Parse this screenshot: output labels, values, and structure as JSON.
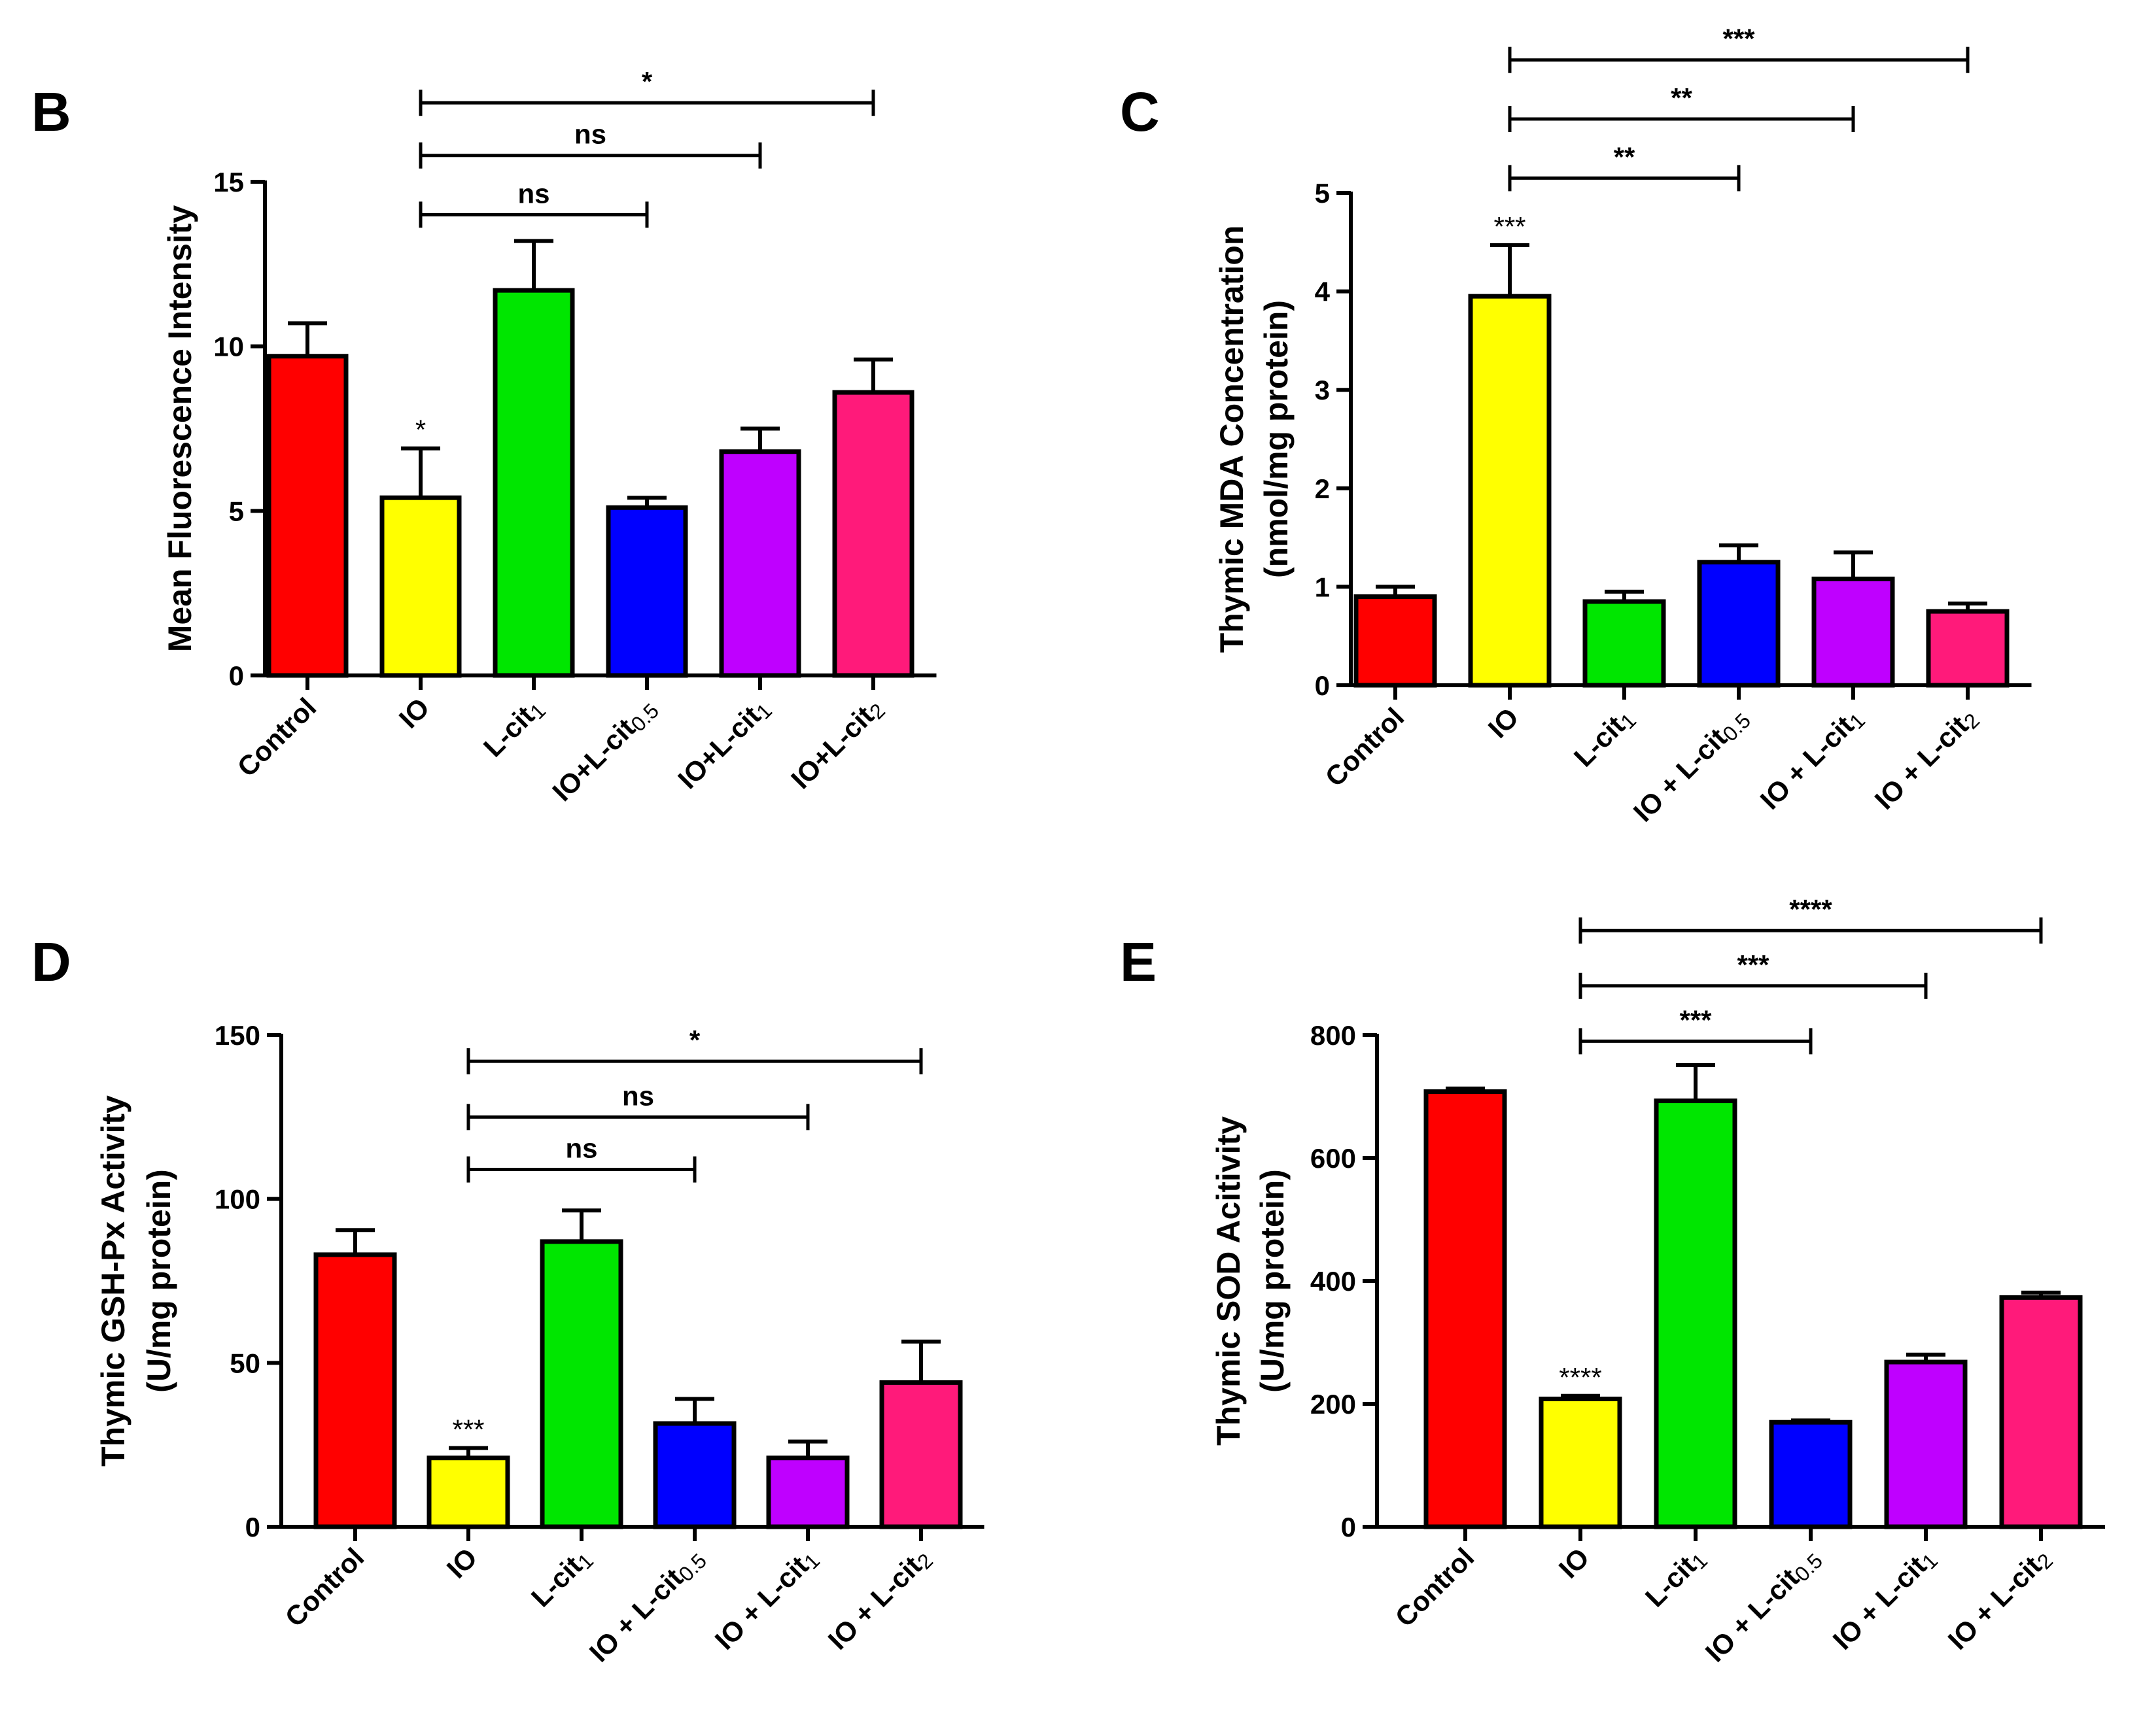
{
  "chart_data": [
    {
      "panel": "B",
      "type": "bar",
      "ylabel": "Mean Fluorescence Intensity",
      "ylim": [
        0,
        15
      ],
      "yticks": [
        0,
        5,
        10,
        15
      ],
      "categories": [
        {
          "main": "Control",
          "sub": ""
        },
        {
          "main": "IO",
          "sub": ""
        },
        {
          "main": "L-cit",
          "sub": "1"
        },
        {
          "main": "IO+L-cit",
          "sub": "0.5"
        },
        {
          "main": "IO+L-cit",
          "sub": "1"
        },
        {
          "main": "IO+L-cit",
          "sub": "2"
        }
      ],
      "values": [
        9.7,
        5.4,
        11.7,
        5.1,
        6.8,
        8.6
      ],
      "errors": [
        1.0,
        1.5,
        1.5,
        0.3,
        0.7,
        1.0
      ],
      "colors": [
        "#ff0000",
        "#ffff00",
        "#00e600",
        "#0000ff",
        "#bf00ff",
        "#ff1a7a"
      ],
      "bar_annotations": [
        {
          "index": 1,
          "text": "*"
        }
      ],
      "comparisons": [
        {
          "from": 1,
          "to": 3,
          "label": "ns",
          "y": 14.0
        },
        {
          "from": 1,
          "to": 4,
          "label": "ns",
          "y": 15.8
        },
        {
          "from": 1,
          "to": 5,
          "label": "*",
          "y": 17.4
        }
      ]
    },
    {
      "panel": "C",
      "type": "bar",
      "ylabel": "Thymic MDA Concentration",
      "ylabel2": "(nmol/mg protein)",
      "ylim": [
        0,
        5
      ],
      "yticks": [
        0,
        1,
        2,
        3,
        4,
        5
      ],
      "categories": [
        {
          "main": "Control",
          "sub": ""
        },
        {
          "main": "IO",
          "sub": ""
        },
        {
          "main": "L-cit",
          "sub": "1"
        },
        {
          "main": "IO + L-cit",
          "sub": "0.5"
        },
        {
          "main": "IO + L-cit",
          "sub": "1"
        },
        {
          "main": "IO + L-cit",
          "sub": "2"
        }
      ],
      "values": [
        0.9,
        3.95,
        0.85,
        1.25,
        1.08,
        0.75
      ],
      "errors": [
        0.1,
        0.52,
        0.1,
        0.17,
        0.27,
        0.08
      ],
      "colors": [
        "#ff0000",
        "#ffff00",
        "#00e600",
        "#0000ff",
        "#bf00ff",
        "#ff1a7a"
      ],
      "bar_annotations": [
        {
          "index": 1,
          "text": "***"
        }
      ],
      "comparisons": [
        {
          "from": 1,
          "to": 3,
          "label": "**",
          "y": 5.15
        },
        {
          "from": 1,
          "to": 4,
          "label": "**",
          "y": 5.75
        },
        {
          "from": 1,
          "to": 5,
          "label": "***",
          "y": 6.35
        }
      ]
    },
    {
      "panel": "D",
      "type": "bar",
      "ylabel": "Thymic GSH-Px Activity",
      "ylabel2": "(U/mg protein)",
      "ylim": [
        0,
        150
      ],
      "yticks": [
        0,
        50,
        100,
        150
      ],
      "categories": [
        {
          "main": "Control",
          "sub": ""
        },
        {
          "main": "IO",
          "sub": ""
        },
        {
          "main": "L-cit",
          "sub": "1"
        },
        {
          "main": "IO + L-cit",
          "sub": "0.5"
        },
        {
          "main": "IO + L-cit",
          "sub": "1"
        },
        {
          "main": "IO + L-cit",
          "sub": "2"
        }
      ],
      "values": [
        83,
        21,
        87,
        31.5,
        21,
        44
      ],
      "errors": [
        7.5,
        3,
        9.5,
        7.5,
        5,
        12.5
      ],
      "colors": [
        "#ff0000",
        "#ffff00",
        "#00e600",
        "#0000ff",
        "#bf00ff",
        "#ff1a7a"
      ],
      "bar_annotations": [
        {
          "index": 1,
          "text": "***"
        }
      ],
      "comparisons": [
        {
          "from": 1,
          "to": 3,
          "label": "ns",
          "y": 109
        },
        {
          "from": 1,
          "to": 4,
          "label": "ns",
          "y": 125
        },
        {
          "from": 1,
          "to": 5,
          "label": "*",
          "y": 142
        }
      ]
    },
    {
      "panel": "E",
      "type": "bar",
      "ylabel": "Thymic SOD Acitivity",
      "ylabel2": "(U/mg protein)",
      "ylim": [
        0,
        800
      ],
      "yticks": [
        0,
        200,
        400,
        600,
        800
      ],
      "categories": [
        {
          "main": "Control",
          "sub": ""
        },
        {
          "main": "IO",
          "sub": ""
        },
        {
          "main": "L-cit",
          "sub": "1"
        },
        {
          "main": "IO + L-cit",
          "sub": "0.5"
        },
        {
          "main": "IO + L-cit",
          "sub": "1"
        },
        {
          "main": "IO + L-cit",
          "sub": "2"
        }
      ],
      "values": [
        708,
        208,
        693,
        170,
        268,
        373
      ],
      "errors": [
        5,
        5,
        58,
        3,
        12,
        8
      ],
      "colors": [
        "#ff0000",
        "#ffff00",
        "#00e600",
        "#0000ff",
        "#bf00ff",
        "#ff1a7a"
      ],
      "bar_annotations": [
        {
          "index": 1,
          "text": "****"
        }
      ],
      "comparisons": [
        {
          "from": 1,
          "to": 3,
          "label": "***",
          "y": 790
        },
        {
          "from": 1,
          "to": 4,
          "label": "***",
          "y": 880
        },
        {
          "from": 1,
          "to": 5,
          "label": "****",
          "y": 970
        }
      ]
    }
  ]
}
